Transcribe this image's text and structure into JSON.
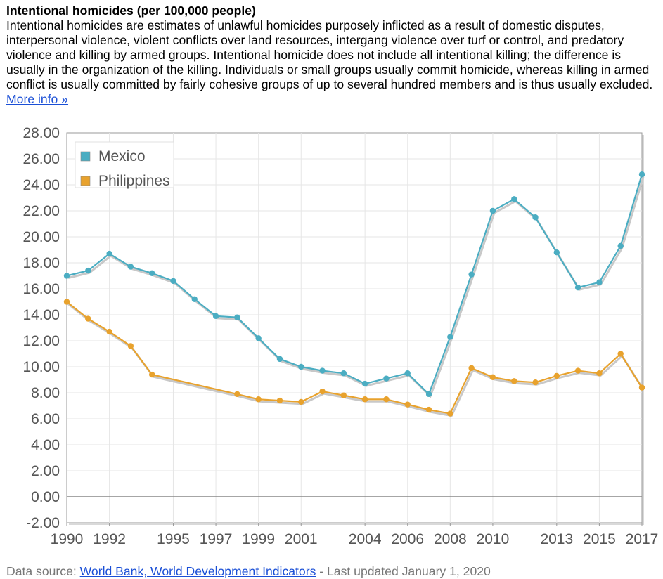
{
  "header": {
    "title": "Intentional homicides (per 100,000 people)",
    "description": "Intentional homicides are estimates of unlawful homicides purposely inflicted as a result of domestic disputes, interpersonal violence, violent conflicts over land resources, intergang violence over turf or control, and predatory violence and killing by armed groups. Intentional homicide does not include all intentional killing; the difference is usually in the organization of the killing. Individuals or small groups usually commit homicide, whereas killing in armed conflict is usually committed by fairly cohesive groups of up to several hundred members and is thus usually excluded.",
    "more_info": "More info »"
  },
  "footer": {
    "prefix": "Data source: ",
    "source": "World Bank, World Development Indicators",
    "updated": " - Last updated January 1, 2020"
  },
  "colors": {
    "mexico": "#4badc2",
    "philippines": "#e8a22d",
    "grid": "#e6e6e6",
    "axis": "#999999",
    "zero_line": "#888888"
  },
  "chart_data": {
    "type": "line",
    "ylim": [
      -2,
      28
    ],
    "xlim": [
      1990,
      2017
    ],
    "y_ticks": [
      "28.00",
      "26.00",
      "24.00",
      "22.00",
      "20.00",
      "18.00",
      "16.00",
      "14.00",
      "12.00",
      "10.00",
      "8.00",
      "6.00",
      "4.00",
      "2.00",
      "0.00",
      "-2.00"
    ],
    "x_ticks": [
      "1990",
      "1992",
      "1995",
      "1997",
      "1999",
      "2001",
      "2004",
      "2006",
      "2008",
      "2010",
      "2013",
      "2015",
      "2017"
    ],
    "grid": true,
    "legend_position": "top-left",
    "x": [
      1990,
      1991,
      1992,
      1993,
      1994,
      1995,
      1996,
      1997,
      1998,
      1999,
      2000,
      2001,
      2002,
      2003,
      2004,
      2005,
      2006,
      2007,
      2008,
      2009,
      2010,
      2011,
      2012,
      2013,
      2014,
      2015,
      2016,
      2017
    ],
    "series": [
      {
        "name": "Mexico",
        "values": [
          17.0,
          17.4,
          18.7,
          17.7,
          17.2,
          16.6,
          15.2,
          13.9,
          13.8,
          12.2,
          10.6,
          10.0,
          9.7,
          9.5,
          8.7,
          9.1,
          9.5,
          7.9,
          12.3,
          17.1,
          22.0,
          22.9,
          21.5,
          18.8,
          16.1,
          16.5,
          19.3,
          24.8
        ]
      },
      {
        "name": "Philippines",
        "values": [
          15.0,
          13.7,
          12.7,
          11.6,
          9.4,
          null,
          null,
          null,
          7.9,
          7.5,
          7.4,
          7.3,
          8.1,
          7.8,
          7.5,
          7.5,
          7.1,
          6.7,
          6.4,
          9.9,
          9.2,
          8.9,
          8.8,
          9.3,
          9.7,
          9.5,
          11.0,
          8.4
        ]
      }
    ]
  }
}
